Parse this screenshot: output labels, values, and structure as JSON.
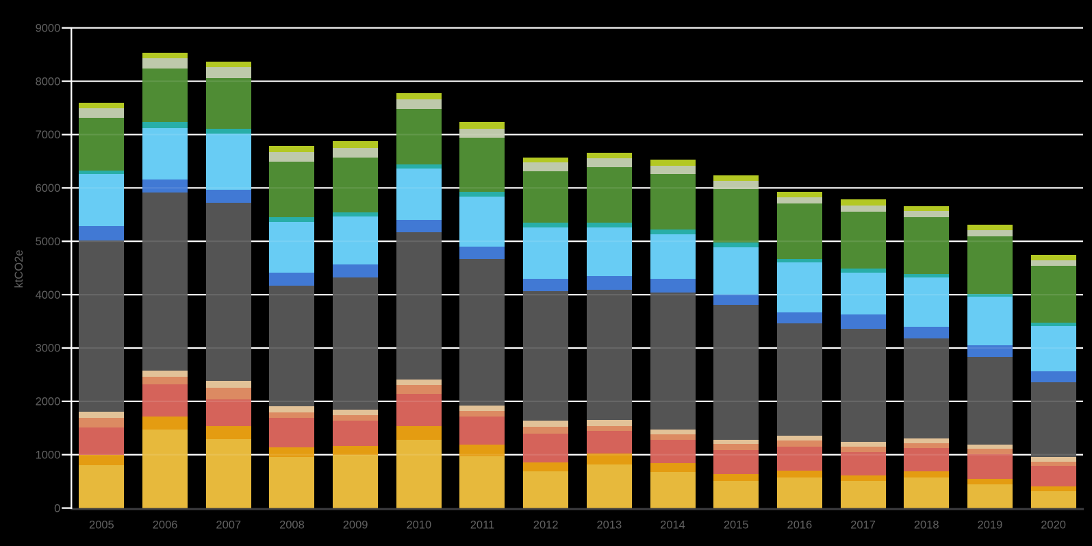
{
  "chart_data": {
    "type": "bar",
    "subtype": "stacked-column",
    "title": "",
    "xlabel": "",
    "ylabel": "ktCO2e",
    "ylim": [
      0,
      9000
    ],
    "ytick_step": 1000,
    "yticks": [
      0,
      1000,
      2000,
      3000,
      4000,
      5000,
      6000,
      7000,
      8000,
      9000
    ],
    "grid": "horizontal-white-lines-on-black",
    "legend": "none",
    "background_color": "#000000",
    "gridline_color": "#ffffff",
    "axis_line_color": "#ffffff",
    "baseline_color": "#3e3e41",
    "label_color": "#616161",
    "categories": [
      "2005",
      "2006",
      "2007",
      "2008",
      "2009",
      "2010",
      "2011",
      "2012",
      "2013",
      "2014",
      "2015",
      "2016",
      "2017",
      "2018",
      "2019",
      "2020"
    ],
    "series": [
      {
        "name": "gold",
        "color": "#e7b93c",
        "values": [
          806,
          1466,
          1288,
          962,
          993,
          1273,
          975,
          685,
          818,
          675,
          504,
          568,
          504,
          568,
          440,
          320
        ]
      },
      {
        "name": "dark-orange",
        "color": "#e49c11",
        "values": [
          188,
          245,
          251,
          180,
          172,
          263,
          209,
          168,
          198,
          163,
          136,
          137,
          113,
          120,
          113,
          91
        ]
      },
      {
        "name": "red",
        "color": "#d5635a",
        "values": [
          517,
          612,
          503,
          551,
          474,
          609,
          527,
          542,
          426,
          440,
          452,
          445,
          436,
          440,
          458,
          382
        ]
      },
      {
        "name": "salmon",
        "color": "#dc8a62",
        "values": [
          184,
          142,
          215,
          104,
          104,
          162,
          112,
          132,
          96,
          107,
          106,
          113,
          97,
          92,
          96,
          77
        ]
      },
      {
        "name": "tan",
        "color": "#e2c298",
        "values": [
          106,
          111,
          128,
          105,
          99,
          97,
          97,
          117,
          117,
          88,
          80,
          90,
          96,
          91,
          85,
          83
        ]
      },
      {
        "name": "dark-gray",
        "color": "#545454",
        "values": [
          3212,
          3335,
          3333,
          2271,
          2477,
          2762,
          2752,
          2417,
          2430,
          2567,
          2525,
          2105,
          2115,
          1874,
          1635,
          1404
        ]
      },
      {
        "name": "royal-blue",
        "color": "#4179d4",
        "values": [
          266,
          244,
          250,
          233,
          243,
          238,
          227,
          233,
          257,
          254,
          202,
          213,
          262,
          217,
          229,
          202
        ]
      },
      {
        "name": "sky-blue",
        "color": "#68ccf4",
        "values": [
          982,
          963,
          1045,
          958,
          909,
          956,
          935,
          969,
          921,
          839,
          878,
          928,
          795,
          920,
          906,
          855
        ]
      },
      {
        "name": "teal",
        "color": "#28aea8",
        "values": [
          65,
          117,
          93,
          88,
          73,
          81,
          88,
          88,
          88,
          89,
          89,
          68,
          73,
          69,
          54,
          60
        ]
      },
      {
        "name": "green",
        "color": "#4f8c34",
        "values": [
          982,
          998,
          947,
          1035,
          1025,
          1037,
          1015,
          960,
          1041,
          1040,
          1009,
          1041,
          1068,
          1059,
          1077,
          1069
        ]
      },
      {
        "name": "sage",
        "color": "#bec9ab",
        "values": [
          189,
          203,
          208,
          184,
          174,
          189,
          169,
          169,
          160,
          158,
          153,
          122,
          109,
          113,
          113,
          101
        ]
      },
      {
        "name": "yellow-green",
        "color": "#b3c823",
        "values": [
          103,
          104,
          111,
          117,
          131,
          110,
          131,
          93,
          113,
          113,
          100,
          100,
          113,
          98,
          109,
          101
        ]
      }
    ],
    "totals": [
      7600,
      8540,
      8372,
      6788,
      6874,
      7777,
      7237,
      6573,
      6665,
      6533,
      6234,
      5930,
      5781,
      5661,
      5315,
      4745
    ]
  }
}
